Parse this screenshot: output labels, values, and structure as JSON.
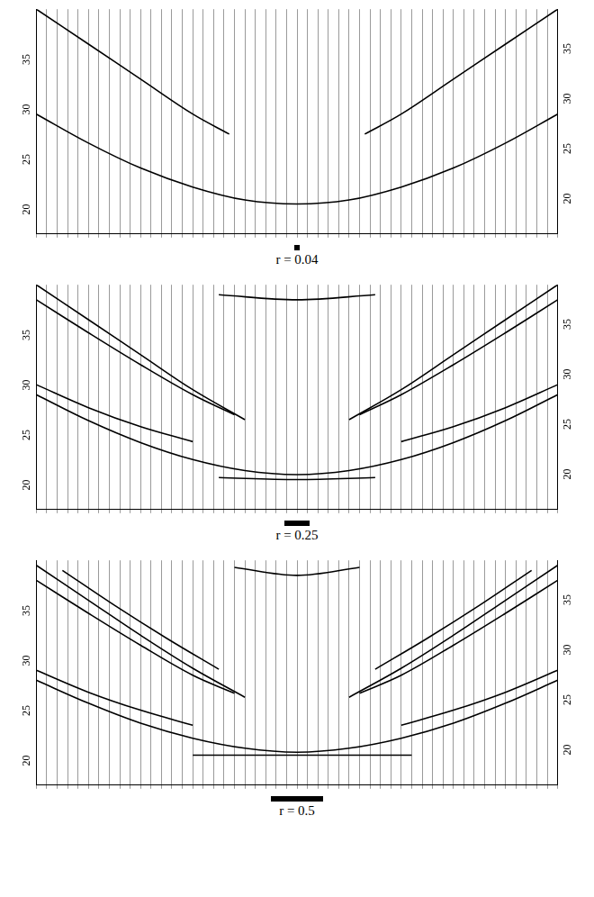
{
  "chart_data": [
    {
      "type": "scatter",
      "label": "r = 0.04",
      "r": 0.04,
      "color": "#000000",
      "marker": "none",
      "line_style": "solid",
      "grid": true,
      "tick_labels": "y",
      "xlim": [
        0,
        100
      ],
      "xticks": [
        0,
        2,
        4,
        6,
        8,
        10,
        12,
        14,
        16,
        18,
        20,
        22,
        24,
        26,
        28,
        30,
        32,
        34,
        36,
        38,
        40,
        42,
        44,
        46,
        48,
        50,
        52,
        54,
        56,
        58,
        60,
        62,
        64,
        66,
        68,
        70,
        72,
        74,
        76,
        78,
        80,
        82,
        84,
        86,
        88,
        90,
        92,
        94,
        96,
        98,
        100
      ],
      "ylim": [
        17,
        39.5
      ],
      "yticks": [
        20,
        25,
        30,
        35
      ],
      "y2lim": [
        17,
        39.5
      ],
      "y2ticks": [
        20,
        25,
        30,
        35
      ],
      "series": [
        {
          "x": [
            0,
            10,
            20,
            30,
            40,
            50,
            60,
            70,
            80,
            90,
            100
          ],
          "values": [
            29.0,
            26.1,
            23.6,
            21.7,
            20.4,
            20.0,
            20.4,
            21.7,
            23.6,
            26.1,
            29.0
          ]
        },
        {
          "x": [
            0,
            10,
            20,
            30,
            37
          ],
          "values": [
            39.5,
            36.0,
            32.5,
            29.0,
            27.0
          ]
        },
        {
          "x": [
            63,
            70,
            80,
            90,
            100
          ],
          "values": [
            27.0,
            29.0,
            32.5,
            36.0,
            39.5
          ]
        }
      ]
    },
    {
      "type": "scatter",
      "label": "r = 0.25",
      "r": 0.25,
      "color": "#000000",
      "marker": "none",
      "line_style": "solid",
      "grid": true,
      "tick_labels": "y",
      "xlim": [
        0,
        100
      ],
      "xticks": [
        0,
        2,
        4,
        6,
        8,
        10,
        12,
        14,
        16,
        18,
        20,
        22,
        24,
        26,
        28,
        30,
        32,
        34,
        36,
        38,
        40,
        42,
        44,
        46,
        48,
        50,
        52,
        54,
        56,
        58,
        60,
        62,
        64,
        66,
        68,
        70,
        72,
        74,
        76,
        78,
        80,
        82,
        84,
        86,
        88,
        90,
        92,
        94,
        96,
        98,
        100
      ],
      "ylim": [
        17,
        39.5
      ],
      "yticks": [
        20,
        25,
        30,
        35
      ],
      "y2lim": [
        17,
        39.5
      ],
      "y2ticks": [
        20,
        25,
        30,
        35
      ],
      "series": [
        {
          "x": [
            0,
            10,
            20,
            30,
            40,
            50,
            60,
            70,
            80,
            90,
            100
          ],
          "values": [
            28.5,
            25.9,
            23.7,
            22.0,
            20.9,
            20.5,
            20.9,
            22.0,
            23.7,
            25.9,
            28.5
          ]
        },
        {
          "x": [
            0,
            10,
            20,
            30
          ],
          "values": [
            29.5,
            27.2,
            25.3,
            23.8
          ]
        },
        {
          "x": [
            70,
            80,
            90,
            100
          ],
          "values": [
            23.8,
            25.3,
            27.2,
            29.5
          ]
        },
        {
          "x": [
            0,
            10,
            20,
            30,
            40
          ],
          "values": [
            39.5,
            36.0,
            32.5,
            29.0,
            26.0
          ]
        },
        {
          "x": [
            60,
            70,
            80,
            90,
            100
          ],
          "values": [
            26.0,
            29.0,
            32.5,
            36.0,
            39.5
          ]
        },
        {
          "x": [
            0,
            10,
            20,
            30,
            38
          ],
          "values": [
            38.0,
            34.7,
            31.5,
            28.5,
            26.5
          ]
        },
        {
          "x": [
            62,
            70,
            80,
            90,
            100
          ],
          "values": [
            26.5,
            28.5,
            31.5,
            34.7,
            38.0
          ]
        },
        {
          "x": [
            35,
            50,
            65
          ],
          "values": [
            38.5,
            38.0,
            38.5
          ]
        },
        {
          "x": [
            35,
            50,
            65
          ],
          "values": [
            20.2,
            20.0,
            20.2
          ]
        }
      ]
    },
    {
      "type": "scatter",
      "label": "r = 0.5",
      "r": 0.5,
      "color": "#000000",
      "marker": "none",
      "line_style": "solid",
      "grid": true,
      "tick_labels": "y",
      "xlim": [
        0,
        100
      ],
      "xticks": [
        0,
        2,
        4,
        6,
        8,
        10,
        12,
        14,
        16,
        18,
        20,
        22,
        24,
        26,
        28,
        30,
        32,
        34,
        36,
        38,
        40,
        42,
        44,
        46,
        48,
        50,
        52,
        54,
        56,
        58,
        60,
        62,
        64,
        66,
        68,
        70,
        72,
        74,
        76,
        78,
        80,
        82,
        84,
        86,
        88,
        90,
        92,
        94,
        96,
        98,
        100
      ],
      "ylim": [
        17,
        39.5
      ],
      "yticks": [
        20,
        25,
        30,
        35
      ],
      "y2lim": [
        17,
        39.5
      ],
      "y2ticks": [
        20,
        25,
        30,
        35
      ],
      "series": [
        {
          "x": [
            0,
            10,
            20,
            30,
            40,
            50,
            60,
            70,
            80,
            90,
            100
          ],
          "values": [
            27.5,
            25.2,
            23.2,
            21.7,
            20.7,
            20.3,
            20.7,
            21.7,
            23.2,
            25.2,
            27.5
          ]
        },
        {
          "x": [
            0,
            10,
            20,
            30
          ],
          "values": [
            28.5,
            26.3,
            24.5,
            23.0
          ]
        },
        {
          "x": [
            70,
            80,
            90,
            100
          ],
          "values": [
            23.0,
            24.5,
            26.3,
            28.5
          ]
        },
        {
          "x": [
            0,
            10,
            20,
            30,
            40
          ],
          "values": [
            39.0,
            35.5,
            32.0,
            28.7,
            25.8
          ]
        },
        {
          "x": [
            60,
            70,
            80,
            90,
            100
          ],
          "values": [
            25.8,
            28.7,
            32.0,
            35.5,
            39.0
          ]
        },
        {
          "x": [
            0,
            10,
            20,
            30,
            38
          ],
          "values": [
            37.5,
            34.2,
            31.0,
            28.0,
            26.2
          ]
        },
        {
          "x": [
            62,
            70,
            80,
            90,
            100
          ],
          "values": [
            26.2,
            28.0,
            31.0,
            34.2,
            37.5
          ]
        },
        {
          "x": [
            5,
            15,
            25,
            35
          ],
          "values": [
            38.5,
            35.0,
            31.7,
            28.6
          ]
        },
        {
          "x": [
            65,
            75,
            85,
            95
          ],
          "values": [
            28.6,
            31.7,
            35.0,
            38.5
          ]
        },
        {
          "x": [
            38,
            50,
            62
          ],
          "values": [
            38.8,
            38.0,
            38.8
          ]
        },
        {
          "x": [
            30,
            50,
            72
          ],
          "values": [
            20.0,
            20.0,
            20.0
          ]
        }
      ]
    }
  ]
}
